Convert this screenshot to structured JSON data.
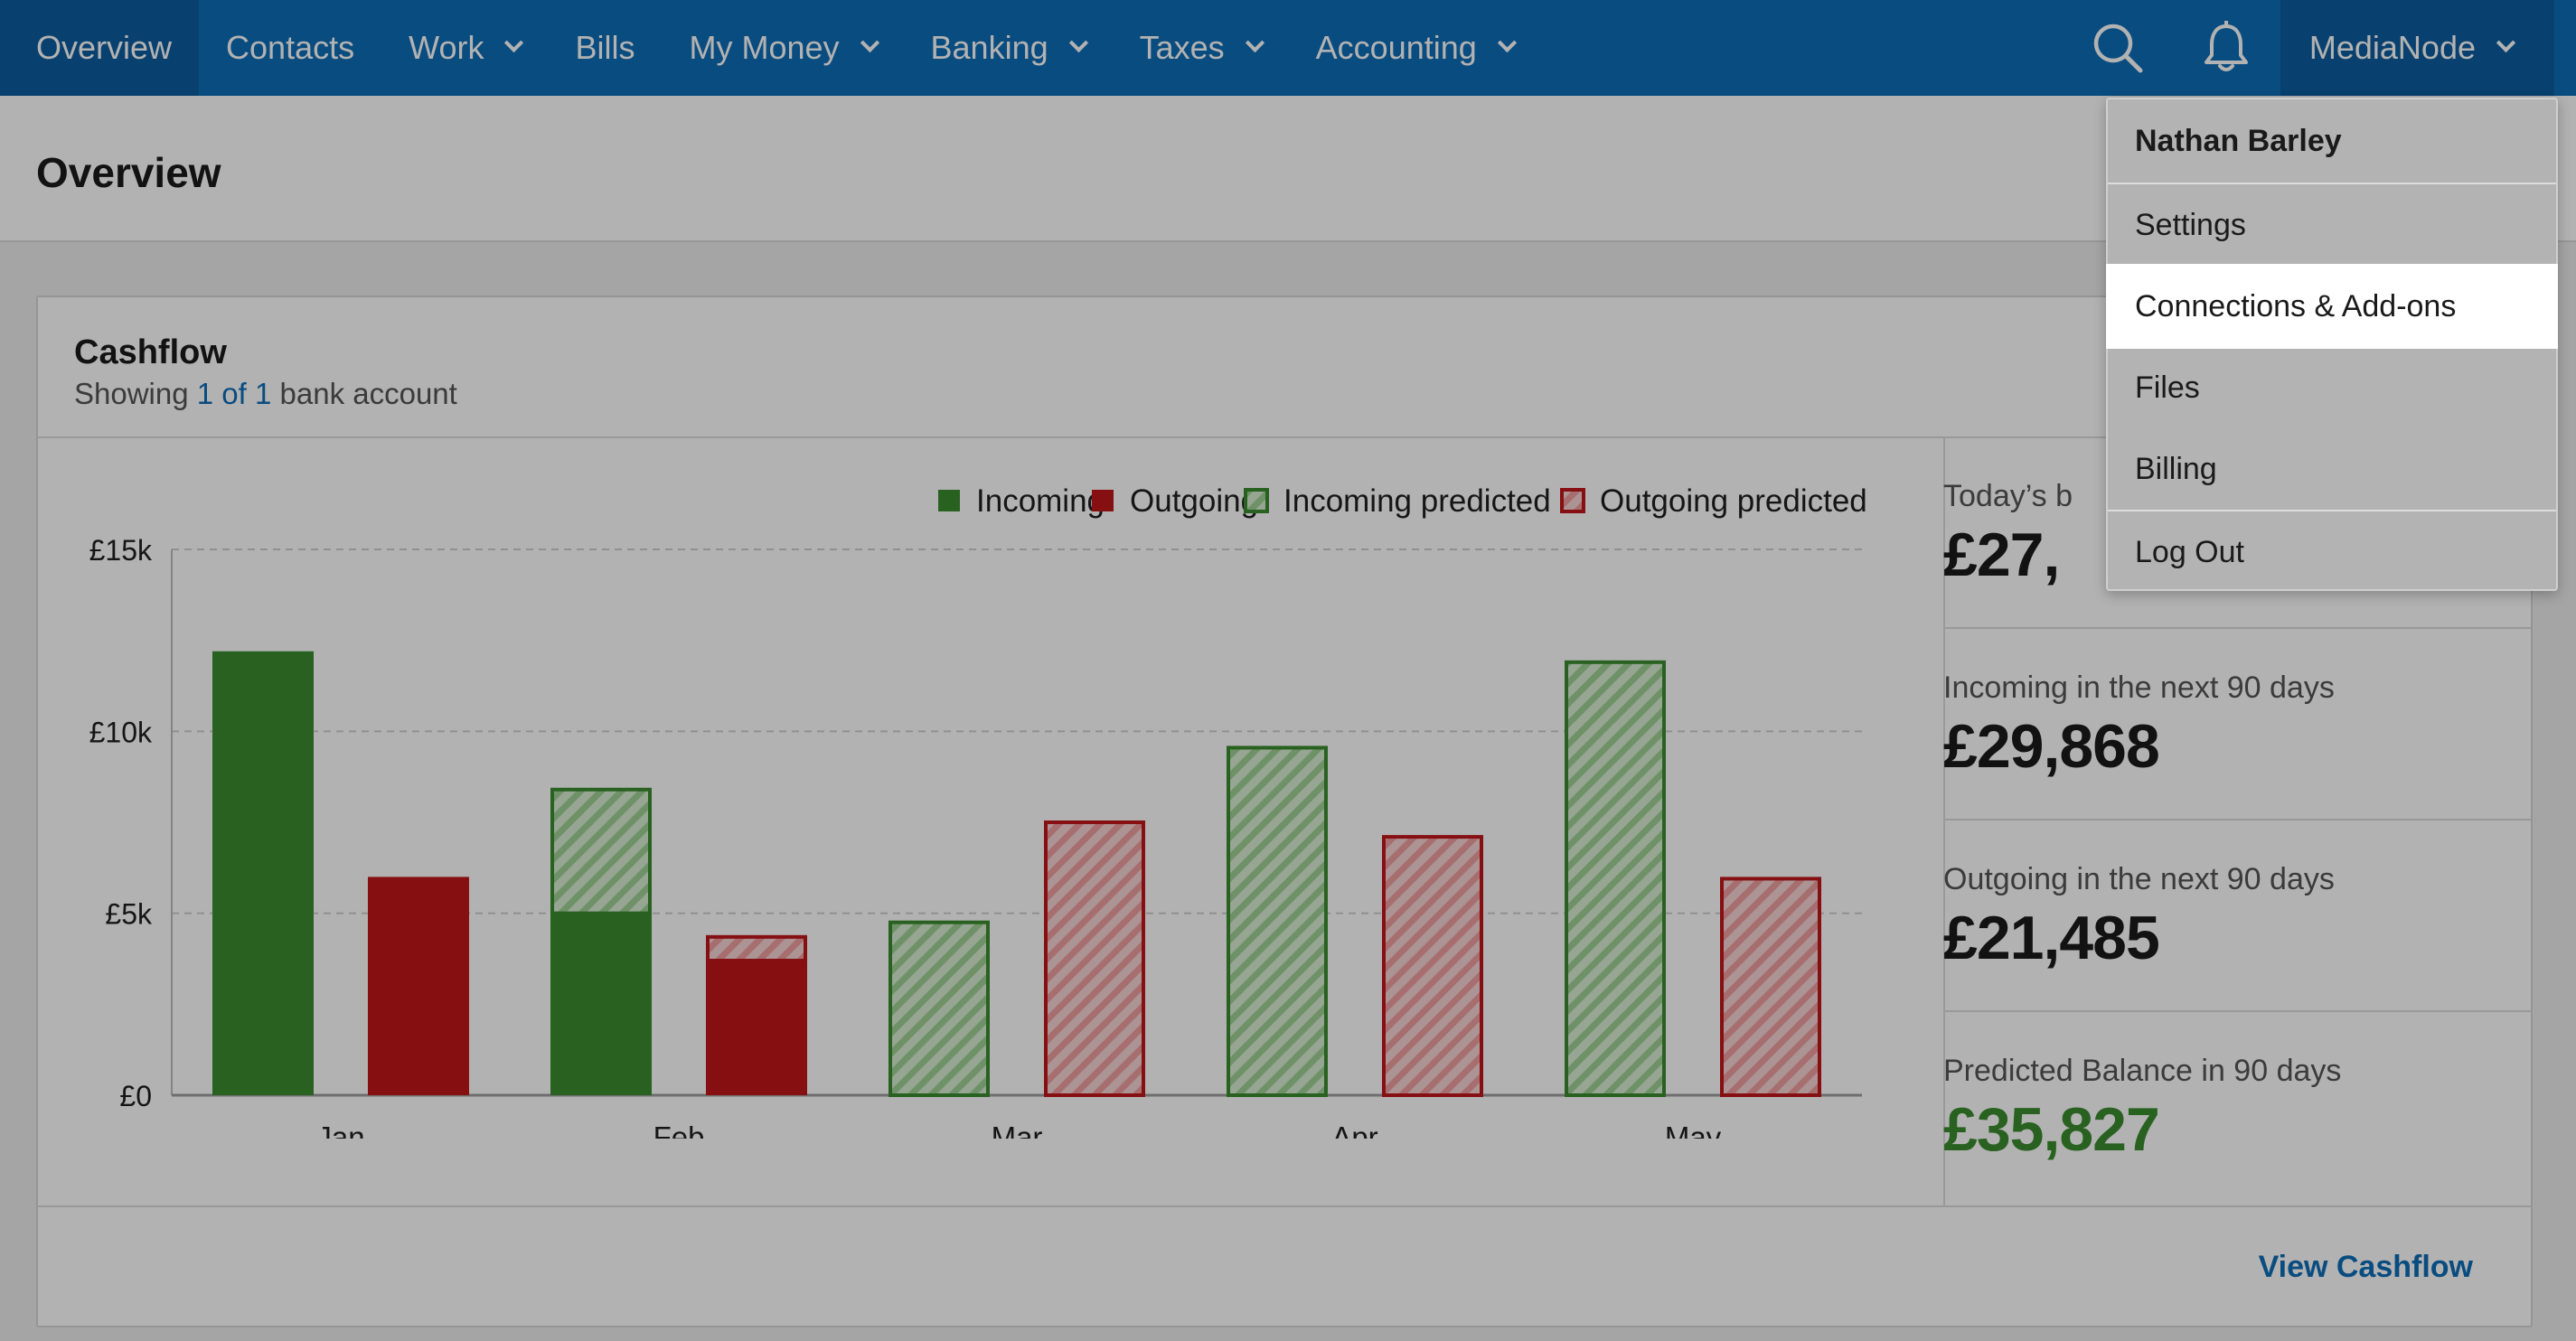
{
  "nav": {
    "items": [
      {
        "label": "Overview",
        "dropdown": false,
        "active": true
      },
      {
        "label": "Contacts",
        "dropdown": false
      },
      {
        "label": "Work",
        "dropdown": true
      },
      {
        "label": "Bills",
        "dropdown": false
      },
      {
        "label": "My Money",
        "dropdown": true
      },
      {
        "label": "Banking",
        "dropdown": true
      },
      {
        "label": "Taxes",
        "dropdown": true
      },
      {
        "label": "Accounting",
        "dropdown": true
      }
    ],
    "search_icon": "search-icon",
    "notifications_icon": "bell-icon",
    "account_label": "MediaNode"
  },
  "page": {
    "title": "Overview"
  },
  "cashflow": {
    "title": "Cashflow",
    "subtitle_prefix": "Showing",
    "subtitle_link": "1 of 1",
    "subtitle_suffix": "bank account",
    "view_link": "View Cashflow"
  },
  "stats": {
    "todays_label": "Today’s b",
    "todays_value": "£27,",
    "incoming_label": "Incoming in the next 90 days",
    "incoming_value": "£29,868",
    "outgoing_label": "Outgoing in the next 90 days",
    "outgoing_value": "£21,485",
    "predicted_label": "Predicted Balance in 90 days",
    "predicted_value": "£35,827"
  },
  "chart_data": {
    "type": "bar",
    "categories": [
      "Jan",
      "Feb",
      "Mar",
      "Apr",
      "May"
    ],
    "y_ticks": [
      "£0",
      "£5k",
      "£10k",
      "£15k"
    ],
    "ylim": [
      0,
      15000
    ],
    "grid": true,
    "legend_position": "top-right",
    "series": [
      {
        "name": "Incoming",
        "values": [
          12200,
          5000,
          0,
          0,
          0
        ]
      },
      {
        "name": "Outgoing",
        "values": [
          6000,
          3700,
          0,
          0,
          0
        ]
      },
      {
        "name": "Incoming predicted",
        "values": [
          0,
          3450,
          4800,
          9600,
          11950
        ]
      },
      {
        "name": "Outgoing predicted",
        "values": [
          0,
          700,
          7550,
          7150,
          6000
        ]
      }
    ],
    "colors": {
      "incoming": "#3a8b2f",
      "outgoing": "#c0161b",
      "incoming_predicted": "#3a8b2f",
      "outgoing_predicted": "#c0161b"
    }
  },
  "account_menu": {
    "user_name": "Nathan Barley",
    "items": [
      "Settings",
      "Connections & Add-ons",
      "Files",
      "Billing"
    ],
    "logout": "Log Out",
    "highlighted": "Connections & Add-ons"
  }
}
